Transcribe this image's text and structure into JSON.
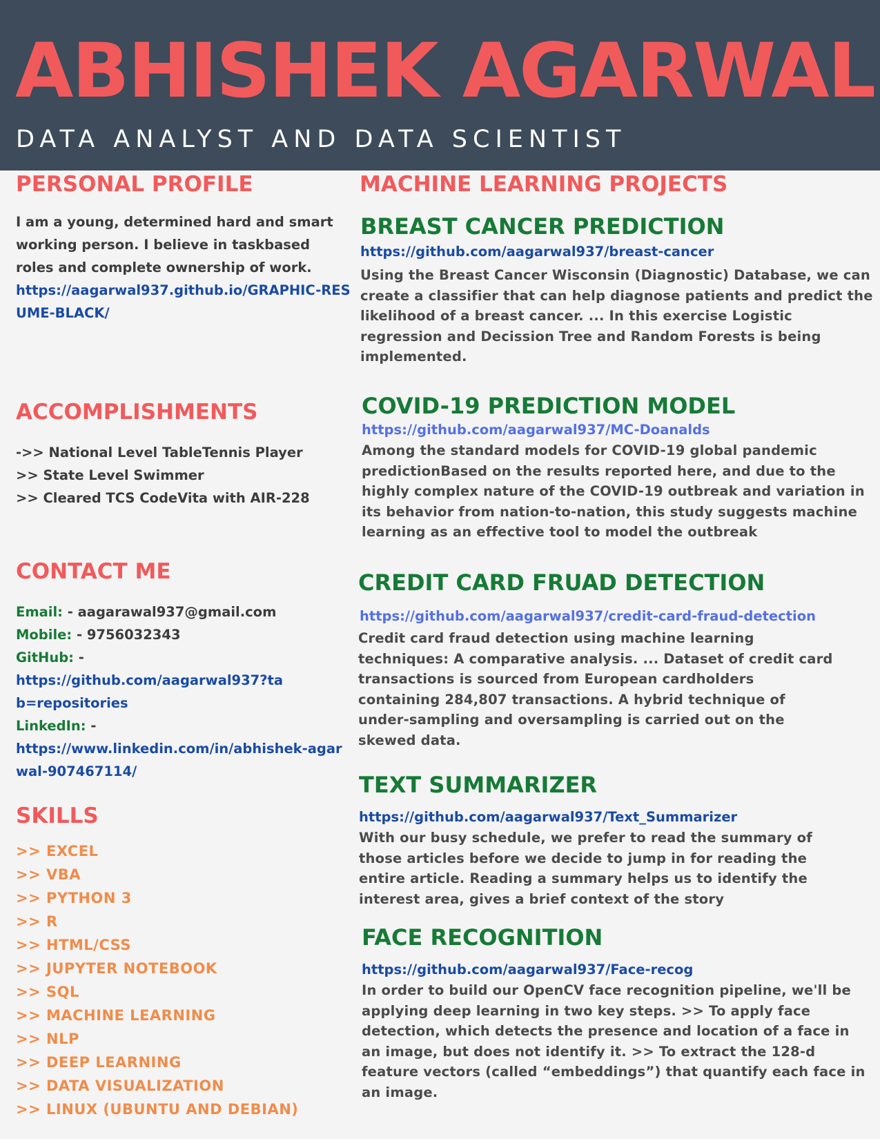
{
  "header": {
    "name": "ABHISHEK AGARWAL",
    "subtitle": "DATA ANALYST AND DATA SCIENTIST"
  },
  "personal_profile": {
    "title": "PERSONAL PROFILE",
    "text": "I am a young, determined hard and smart working person. I believe in taskbased roles and complete ownership of work.",
    "link": "https://aagarwal937.github.io/GRAPHIC-RESUME-BLACK/"
  },
  "accomplishments": {
    "title": "ACCOMPLISHMENTS",
    "items": [
      "->> National Level TableTennis Player",
      ">> State Level Swimmer",
      ">> Cleared TCS CodeVita with AIR-228"
    ]
  },
  "contact": {
    "title": "CONTACT ME",
    "email_label": "Email:",
    "email_value": " - aagarawal937@gmail.com",
    "mobile_label": "Mobile:",
    "mobile_value": " - 9756032343",
    "github_label": "GitHub:",
    "github_sep": " -",
    "github_link": "https://github.com/aagarwal937?tab=repositories",
    "linkedin_label": "LinkedIn:",
    "linkedin_sep": " -",
    "linkedin_link": "https://www.linkedin.com/in/abhishek-agarwal-907467114/"
  },
  "skills": {
    "title": "SKILLS",
    "items": [
      ">> EXCEL",
      ">> VBA",
      ">> PYTHON 3",
      ">> R",
      ">> HTML/CSS",
      ">> JUPYTER NOTEBOOK",
      ">> SQL",
      ">> MACHINE LEARNING",
      ">> NLP",
      ">> DEEP LEARNING",
      ">> DATA VISUALIZATION",
      ">> LINUX (UBUNTU AND DEBIAN)"
    ]
  },
  "projects": {
    "title": "MACHINE LEARNING PROJECTS",
    "items": [
      {
        "title": "BREAST CANCER PREDICTION",
        "link": "https://github.com/aagarwal937/breast-cancer",
        "desc": "Using the Breast Cancer Wisconsin (Diagnostic) Database, we can create a classifier that can help diagnose patients and predict the likelihood of a breast cancer. ... In this exercise Logistic regression and Decission Tree and Random Forests is being implemented."
      },
      {
        "title": "COVID-19 PREDICTION MODEL",
        "link": "https://github.com/aagarwal937/MC-Doanalds",
        "desc": "Among the standard models for COVID-19 global pandemic predictionBased on the results reported here, and due to the highly complex nature of the COVID-19 outbreak and variation in its behavior from nation-to-nation, this study suggests machine learning as an effective tool to model the outbreak"
      },
      {
        "title": "CREDIT CARD FRUAD DETECTION",
        "link": "https://github.com/aagarwal937/credit-card-fraud-detection",
        "desc": "Credit card fraud detection using machine learning techniques: A comparative analysis. ... Dataset of credit card transactions is sourced from European cardholders containing 284,807 transactions. A hybrid technique of under-sampling and oversampling is carried out on the skewed data."
      },
      {
        "title": "TEXT SUMMARIZER",
        "link": "https://github.com/aagarwal937/Text_Summarizer",
        "desc": "With our busy schedule, we prefer to read the summary of those articles before we decide to jump in for reading the entire article. Reading a summary helps us to identify the interest area, gives a brief context of the story"
      },
      {
        "title": "FACE RECOGNITION",
        "link": "https://github.com/aagarwal937/Face-recog",
        "desc": "In order to build our OpenCV face recognition pipeline, we'll be applying deep learning in two key steps. >> To apply face detection, which detects the presence and location of a face in an image, but does not identify it. >> To extract the 128-d feature vectors (called “embeddings”) that quantify each face in an image."
      }
    ]
  },
  "colors": {
    "header_bg": "#3d4b5b",
    "accent_red": "#f15a5b",
    "project_green": "#167a36",
    "link_blue": "#1a4ba3",
    "skill_orange": "#f08c4a"
  }
}
